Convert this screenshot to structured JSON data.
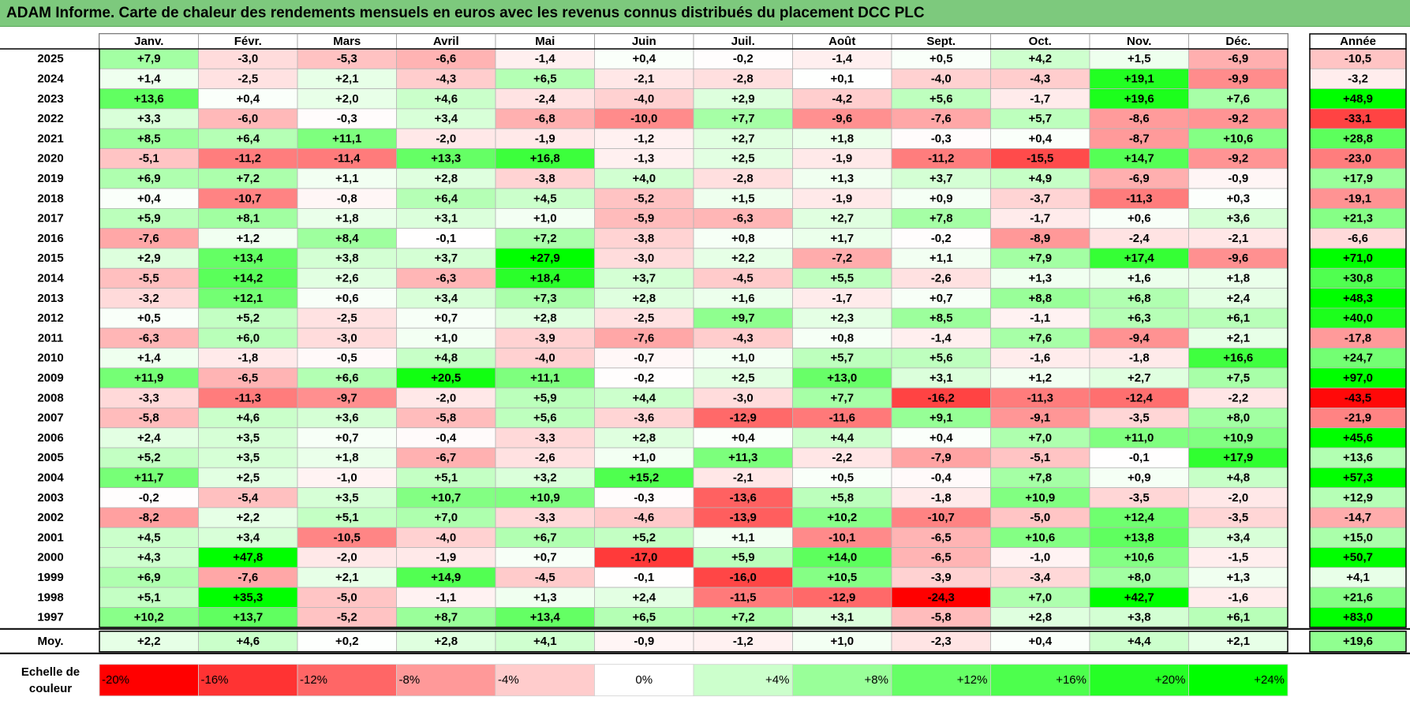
{
  "title": "ADAM Informe. Carte de chaleur des rendements mensuels en euros avec les revenus connus distribués du placement DCC PLC",
  "chart_data": {
    "type": "heatmap",
    "title": "ADAM Informe. Carte de chaleur des rendements mensuels en euros avec les revenus connus distribués du placement DCC PLC",
    "months": [
      "Janv.",
      "Févr.",
      "Mars",
      "Avril",
      "Mai",
      "Juin",
      "Juil.",
      "Août",
      "Sept.",
      "Oct.",
      "Nov.",
      "Déc."
    ],
    "annual_label": "Année",
    "average_label": "Moy.",
    "rows": [
      {
        "year": "2025",
        "values": [
          "+7,9",
          "-3,0",
          "-5,3",
          "-6,6",
          "-1,4",
          "+0,4",
          "-0,2",
          "-1,4",
          "+0,5",
          "+4,2",
          "+1,5",
          "-6,9"
        ],
        "annual": "-10,5"
      },
      {
        "year": "2024",
        "values": [
          "+1,4",
          "-2,5",
          "+2,1",
          "-4,3",
          "+6,5",
          "-2,1",
          "-2,8",
          "+0,1",
          "-4,0",
          "-4,3",
          "+19,1",
          "-9,9"
        ],
        "annual": "-3,2"
      },
      {
        "year": "2023",
        "values": [
          "+13,6",
          "+0,4",
          "+2,0",
          "+4,6",
          "-2,4",
          "-4,0",
          "+2,9",
          "-4,2",
          "+5,6",
          "-1,7",
          "+19,6",
          "+7,6"
        ],
        "annual": "+48,9"
      },
      {
        "year": "2022",
        "values": [
          "+3,3",
          "-6,0",
          "-0,3",
          "+3,4",
          "-6,8",
          "-10,0",
          "+7,7",
          "-9,6",
          "-7,6",
          "+5,7",
          "-8,6",
          "-9,2"
        ],
        "annual": "-33,1"
      },
      {
        "year": "2021",
        "values": [
          "+8,5",
          "+6,4",
          "+11,1",
          "-2,0",
          "-1,9",
          "-1,2",
          "+2,7",
          "+1,8",
          "-0,3",
          "+0,4",
          "-8,7",
          "+10,6"
        ],
        "annual": "+28,8"
      },
      {
        "year": "2020",
        "values": [
          "-5,1",
          "-11,2",
          "-11,4",
          "+13,3",
          "+16,8",
          "-1,3",
          "+2,5",
          "-1,9",
          "-11,2",
          "-15,5",
          "+14,7",
          "-9,2"
        ],
        "annual": "-23,0"
      },
      {
        "year": "2019",
        "values": [
          "+6,9",
          "+7,2",
          "+1,1",
          "+2,8",
          "-3,8",
          "+4,0",
          "-2,8",
          "+1,3",
          "+3,7",
          "+4,9",
          "-6,9",
          "-0,9"
        ],
        "annual": "+17,9"
      },
      {
        "year": "2018",
        "values": [
          "+0,4",
          "-10,7",
          "-0,8",
          "+6,4",
          "+4,5",
          "-5,2",
          "+1,5",
          "-1,9",
          "+0,9",
          "-3,7",
          "-11,3",
          "+0,3"
        ],
        "annual": "-19,1"
      },
      {
        "year": "2017",
        "values": [
          "+5,9",
          "+8,1",
          "+1,8",
          "+3,1",
          "+1,0",
          "-5,9",
          "-6,3",
          "+2,7",
          "+7,8",
          "-1,7",
          "+0,6",
          "+3,6"
        ],
        "annual": "+21,3"
      },
      {
        "year": "2016",
        "values": [
          "-7,6",
          "+1,2",
          "+8,4",
          "-0,1",
          "+7,2",
          "-3,8",
          "+0,8",
          "+1,7",
          "-0,2",
          "-8,9",
          "-2,4",
          "-2,1"
        ],
        "annual": "-6,6"
      },
      {
        "year": "2015",
        "values": [
          "+2,9",
          "+13,4",
          "+3,8",
          "+3,7",
          "+27,9",
          "-3,0",
          "+2,2",
          "-7,2",
          "+1,1",
          "+7,9",
          "+17,4",
          "-9,6"
        ],
        "annual": "+71,0"
      },
      {
        "year": "2014",
        "values": [
          "-5,5",
          "+14,2",
          "+2,6",
          "-6,3",
          "+18,4",
          "+3,7",
          "-4,5",
          "+5,5",
          "-2,6",
          "+1,3",
          "+1,6",
          "+1,8"
        ],
        "annual": "+30,8"
      },
      {
        "year": "2013",
        "values": [
          "-3,2",
          "+12,1",
          "+0,6",
          "+3,4",
          "+7,3",
          "+2,8",
          "+1,6",
          "-1,7",
          "+0,7",
          "+8,8",
          "+6,8",
          "+2,4"
        ],
        "annual": "+48,3"
      },
      {
        "year": "2012",
        "values": [
          "+0,5",
          "+5,2",
          "-2,5",
          "+0,7",
          "+2,8",
          "-2,5",
          "+9,7",
          "+2,3",
          "+8,5",
          "-1,1",
          "+6,3",
          "+6,1"
        ],
        "annual": "+40,0"
      },
      {
        "year": "2011",
        "values": [
          "-6,3",
          "+6,0",
          "-3,0",
          "+1,0",
          "-3,9",
          "-7,6",
          "-4,3",
          "+0,8",
          "-1,4",
          "+7,6",
          "-9,4",
          "+2,1"
        ],
        "annual": "-17,8"
      },
      {
        "year": "2010",
        "values": [
          "+1,4",
          "-1,8",
          "-0,5",
          "+4,8",
          "-4,0",
          "-0,7",
          "+1,0",
          "+5,7",
          "+5,6",
          "-1,6",
          "-1,8",
          "+16,6"
        ],
        "annual": "+24,7"
      },
      {
        "year": "2009",
        "values": [
          "+11,9",
          "-6,5",
          "+6,6",
          "+20,5",
          "+11,1",
          "-0,2",
          "+2,5",
          "+13,0",
          "+3,1",
          "+1,2",
          "+2,7",
          "+7,5"
        ],
        "annual": "+97,0"
      },
      {
        "year": "2008",
        "values": [
          "-3,3",
          "-11,3",
          "-9,7",
          "-2,0",
          "+5,9",
          "+4,4",
          "-3,0",
          "+7,7",
          "-16,2",
          "-11,3",
          "-12,4",
          "-2,2"
        ],
        "annual": "-43,5"
      },
      {
        "year": "2007",
        "values": [
          "-5,8",
          "+4,6",
          "+3,6",
          "-5,8",
          "+5,6",
          "-3,6",
          "-12,9",
          "-11,6",
          "+9,1",
          "-9,1",
          "-3,5",
          "+8,0"
        ],
        "annual": "-21,9"
      },
      {
        "year": "2006",
        "values": [
          "+2,4",
          "+3,5",
          "+0,7",
          "-0,4",
          "-3,3",
          "+2,8",
          "+0,4",
          "+4,4",
          "+0,4",
          "+7,0",
          "+11,0",
          "+10,9"
        ],
        "annual": "+45,6"
      },
      {
        "year": "2005",
        "values": [
          "+5,2",
          "+3,5",
          "+1,8",
          "-6,7",
          "-2,6",
          "+1,0",
          "+11,3",
          "-2,2",
          "-7,9",
          "-5,1",
          "-0,1",
          "+17,9"
        ],
        "annual": "+13,6"
      },
      {
        "year": "2004",
        "values": [
          "+11,7",
          "+2,5",
          "-1,0",
          "+5,1",
          "+3,2",
          "+15,2",
          "-2,1",
          "+0,5",
          "-0,4",
          "+7,8",
          "+0,9",
          "+4,8"
        ],
        "annual": "+57,3"
      },
      {
        "year": "2003",
        "values": [
          "-0,2",
          "-5,4",
          "+3,5",
          "+10,7",
          "+10,9",
          "-0,3",
          "-13,6",
          "+5,8",
          "-1,8",
          "+10,9",
          "-3,5",
          "-2,0"
        ],
        "annual": "+12,9"
      },
      {
        "year": "2002",
        "values": [
          "-8,2",
          "+2,2",
          "+5,1",
          "+7,0",
          "-3,3",
          "-4,6",
          "-13,9",
          "+10,2",
          "-10,7",
          "-5,0",
          "+12,4",
          "-3,5"
        ],
        "annual": "-14,7"
      },
      {
        "year": "2001",
        "values": [
          "+4,5",
          "+3,4",
          "-10,5",
          "-4,0",
          "+6,7",
          "+5,2",
          "+1,1",
          "-10,1",
          "-6,5",
          "+10,6",
          "+13,8",
          "+3,4"
        ],
        "annual": "+15,0"
      },
      {
        "year": "2000",
        "values": [
          "+4,3",
          "+47,8",
          "-2,0",
          "-1,9",
          "+0,7",
          "-17,0",
          "+5,9",
          "+14,0",
          "-6,5",
          "-1,0",
          "+10,6",
          "-1,5"
        ],
        "annual": "+50,7"
      },
      {
        "year": "1999",
        "values": [
          "+6,9",
          "-7,6",
          "+2,1",
          "+14,9",
          "-4,5",
          "-0,1",
          "-16,0",
          "+10,5",
          "-3,9",
          "-3,4",
          "+8,0",
          "+1,3"
        ],
        "annual": "+4,1"
      },
      {
        "year": "1998",
        "values": [
          "+5,1",
          "+35,3",
          "-5,0",
          "-1,1",
          "+1,3",
          "+2,4",
          "-11,5",
          "-12,9",
          "-24,3",
          "+7,0",
          "+42,7",
          "-1,6"
        ],
        "annual": "+21,6"
      },
      {
        "year": "1997",
        "values": [
          "+10,2",
          "+13,7",
          "-5,2",
          "+8,7",
          "+13,4",
          "+6,5",
          "+7,2",
          "+3,1",
          "-5,8",
          "+2,8",
          "+3,8",
          "+6,1"
        ],
        "annual": "+83,0"
      }
    ],
    "average": {
      "values": [
        "+2,2",
        "+4,6",
        "+0,2",
        "+2,8",
        "+4,1",
        "-0,9",
        "-1,2",
        "+1,0",
        "-2,3",
        "+0,4",
        "+4,4",
        "+2,1"
      ],
      "annual": "+19,6"
    },
    "scale": {
      "label_line1": "Echelle de",
      "label_line2": "couleur",
      "steps": [
        {
          "label": "-20%",
          "color": "#ff0000"
        },
        {
          "label": "-16%",
          "color": "#ff3333"
        },
        {
          "label": "-12%",
          "color": "#ff6666"
        },
        {
          "label": "-8%",
          "color": "#ff9999"
        },
        {
          "label": "-4%",
          "color": "#ffcccc"
        },
        {
          "label": "0%",
          "color": "#ffffff"
        },
        {
          "label": "+4%",
          "color": "#ccffcc"
        },
        {
          "label": "+8%",
          "color": "#99ff99"
        },
        {
          "label": "+12%",
          "color": "#66ff66"
        },
        {
          "label": "+16%",
          "color": "#4dff4d"
        },
        {
          "label": "+20%",
          "color": "#26ff26"
        },
        {
          "label": "+24%",
          "color": "#00ff00"
        }
      ]
    }
  },
  "colors": {
    "title_bg": "#7dc97d",
    "negative": "#ff0000",
    "positive": "#00ff00",
    "neutral": "#ffffff"
  }
}
